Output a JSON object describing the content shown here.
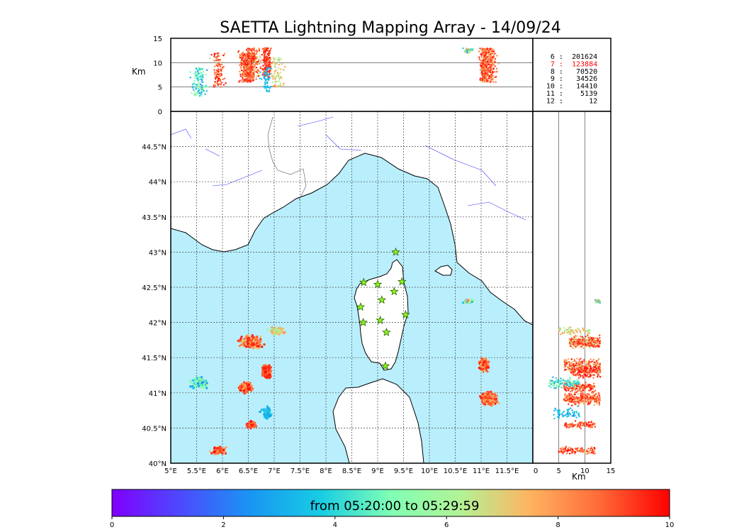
{
  "chart_data": {
    "type": "scatter",
    "title": "SAETTA Lightning Mapping Array - 14/09/24",
    "map": {
      "lon_range": [
        5,
        12
      ],
      "lat_range": [
        40,
        45
      ],
      "x_ticks": [
        "5°E",
        "5.5°E",
        "6°E",
        "6.5°E",
        "7°E",
        "7.5°E",
        "8°E",
        "8.5°E",
        "9°E",
        "9.5°E",
        "10°E",
        "10.5°E",
        "11°E",
        "11.5°E"
      ],
      "y_ticks": [
        "40°N",
        "40.5°N",
        "41°N",
        "41.5°N",
        "42°N",
        "42.5°N",
        "43°N",
        "43.5°N",
        "44°N",
        "44.5°N"
      ],
      "gridlines": true
    },
    "altitude_axis": {
      "unit_label": "Km",
      "range": [
        0,
        15
      ],
      "ticks": [
        "0",
        "5",
        "10",
        "15"
      ]
    },
    "station_count_legend": {
      "rows": [
        {
          "stations": "6",
          "sep": ":",
          "count": "201624",
          "color": "#000000"
        },
        {
          "stations": "7",
          "sep": ":",
          "count": "123884",
          "color": "#ff0000"
        },
        {
          "stations": "8",
          "sep": ":",
          "count": "70520",
          "color": "#000000"
        },
        {
          "stations": "9",
          "sep": ":",
          "count": "34526",
          "color": "#000000"
        },
        {
          "stations": "10",
          "sep": ":",
          "count": "14410",
          "color": "#000000"
        },
        {
          "stations": "11",
          "sep": ":",
          "count": "5139",
          "color": "#000000"
        },
        {
          "stations": "12",
          "sep": ":",
          "count": "12",
          "color": "#000000"
        }
      ]
    },
    "colorbar": {
      "label": "from 05:20:00 to 05:29:59",
      "range": [
        0,
        10
      ],
      "ticks": [
        "0",
        "2",
        "4",
        "6",
        "8",
        "10"
      ],
      "colormap": "rainbow"
    },
    "stations": [
      {
        "lon": 9.35,
        "lat": 43.0
      },
      {
        "lon": 8.73,
        "lat": 42.57
      },
      {
        "lon": 9.0,
        "lat": 42.54
      },
      {
        "lon": 9.47,
        "lat": 42.58
      },
      {
        "lon": 9.32,
        "lat": 42.44
      },
      {
        "lon": 9.08,
        "lat": 42.32
      },
      {
        "lon": 8.67,
        "lat": 42.22
      },
      {
        "lon": 9.54,
        "lat": 42.11
      },
      {
        "lon": 8.72,
        "lat": 42.0
      },
      {
        "lon": 9.05,
        "lat": 42.03
      },
      {
        "lon": 9.17,
        "lat": 41.86
      },
      {
        "lon": 9.15,
        "lat": 41.38
      }
    ],
    "lightning_clusters": [
      {
        "lon": 6.55,
        "lat": 41.72,
        "dlon": 0.28,
        "dlat": 0.12,
        "alt": [
          7,
          13
        ],
        "time": [
          6,
          10
        ],
        "n": 260
      },
      {
        "lon": 6.85,
        "lat": 41.3,
        "dlon": 0.12,
        "dlat": 0.12,
        "alt": [
          7,
          13
        ],
        "time": [
          8,
          10
        ],
        "n": 180
      },
      {
        "lon": 6.45,
        "lat": 41.08,
        "dlon": 0.16,
        "dlat": 0.1,
        "alt": [
          6,
          12
        ],
        "time": [
          7,
          10
        ],
        "n": 160
      },
      {
        "lon": 7.05,
        "lat": 41.88,
        "dlon": 0.2,
        "dlat": 0.07,
        "alt": [
          5,
          11
        ],
        "time": [
          5,
          8
        ],
        "n": 80
      },
      {
        "lon": 5.55,
        "lat": 41.14,
        "dlon": 0.22,
        "dlat": 0.1,
        "alt": [
          3,
          9
        ],
        "time": [
          2,
          6
        ],
        "n": 120
      },
      {
        "lon": 6.55,
        "lat": 40.55,
        "dlon": 0.12,
        "dlat": 0.07,
        "alt": [
          6,
          12
        ],
        "time": [
          8,
          10
        ],
        "n": 90
      },
      {
        "lon": 6.85,
        "lat": 40.7,
        "dlon": 0.14,
        "dlat": 0.12,
        "alt": [
          4,
          9
        ],
        "time": [
          2,
          4
        ],
        "n": 60
      },
      {
        "lon": 5.92,
        "lat": 40.18,
        "dlon": 0.18,
        "dlat": 0.07,
        "alt": [
          5,
          12
        ],
        "time": [
          7,
          10
        ],
        "n": 110
      },
      {
        "lon": 11.05,
        "lat": 41.4,
        "dlon": 0.12,
        "dlat": 0.14,
        "alt": [
          6,
          13
        ],
        "time": [
          6,
          10
        ],
        "n": 180
      },
      {
        "lon": 11.15,
        "lat": 40.92,
        "dlon": 0.22,
        "dlat": 0.12,
        "alt": [
          6,
          13
        ],
        "time": [
          7,
          10
        ],
        "n": 240
      },
      {
        "lon": 10.75,
        "lat": 42.3,
        "dlon": 0.15,
        "dlat": 0.04,
        "alt": [
          12,
          13
        ],
        "time": [
          1,
          8
        ],
        "n": 40
      }
    ]
  }
}
